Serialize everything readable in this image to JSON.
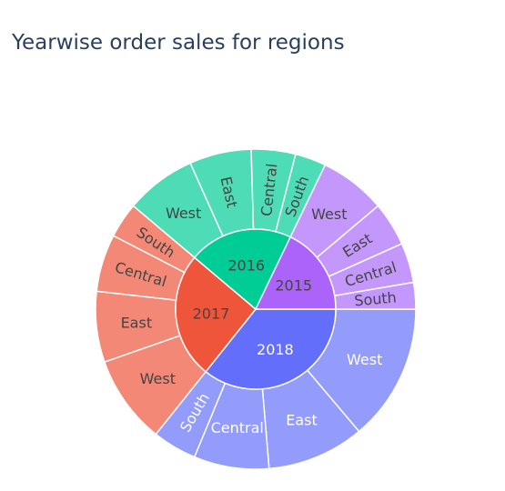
{
  "chart_data": {
    "type": "sunburst",
    "title": "Yearwise order sales for regions",
    "years": [
      {
        "name": "2018",
        "color": "#636efa",
        "children_color": "#939bfb",
        "label_color": "#ffffff",
        "children": [
          {
            "name": "West",
            "value": 155
          },
          {
            "name": "East",
            "value": 110
          },
          {
            "name": "Central",
            "value": 85
          },
          {
            "name": "South",
            "value": 50
          }
        ]
      },
      {
        "name": "2017",
        "color": "#ef553b",
        "children_color": "#f48876",
        "label_color": "#444444",
        "children": [
          {
            "name": "West",
            "value": 100
          },
          {
            "name": "East",
            "value": 80
          },
          {
            "name": "Central",
            "value": 65
          },
          {
            "name": "South",
            "value": 40
          }
        ]
      },
      {
        "name": "2016",
        "color": "#00cc96",
        "children_color": "#4ddcb6",
        "label_color": "#444444",
        "children": [
          {
            "name": "West",
            "value": 80
          },
          {
            "name": "East",
            "value": 70
          },
          {
            "name": "Central",
            "value": 50
          },
          {
            "name": "South",
            "value": 35
          }
        ]
      },
      {
        "name": "2015",
        "color": "#ab63fa",
        "children_color": "#c497fc",
        "label_color": "#444444",
        "children": [
          {
            "name": "West",
            "value": 75
          },
          {
            "name": "East",
            "value": 50
          },
          {
            "name": "Central",
            "value": 45
          },
          {
            "name": "South",
            "value": 30
          }
        ]
      }
    ]
  }
}
